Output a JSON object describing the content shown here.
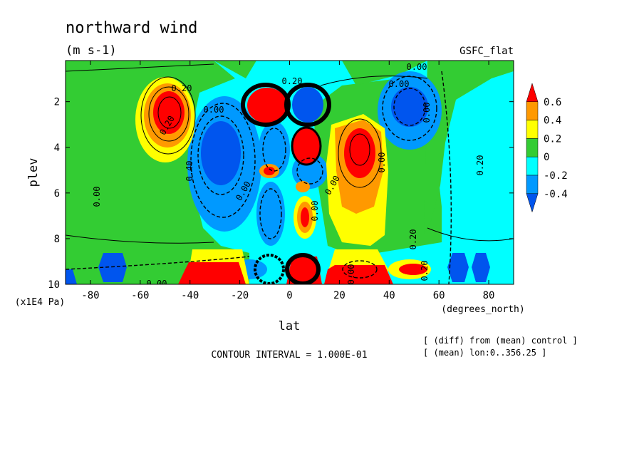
{
  "chart_data": {
    "type": "contour",
    "title": "northward wind",
    "units": "(m s-1)",
    "source_label": "GSFC_flat",
    "xlabel": "lat",
    "xunits": "(degrees_north)",
    "ylabel": "plev",
    "yunits": "(x1E4 Pa)",
    "xlim": [
      -90,
      90
    ],
    "ylim": [
      10,
      0.2
    ],
    "xticks": [
      -80,
      -60,
      -40,
      -20,
      0,
      20,
      40,
      60,
      80
    ],
    "yticks": [
      2,
      4,
      6,
      8,
      10
    ],
    "contour_interval_text": "CONTOUR INTERVAL = 1.000E-01",
    "footnotes": [
      "[ (diff) from (mean) control ]",
      "[ (mean) lon:0..356.25 ]"
    ],
    "colorbar": {
      "labels": [
        "0.6",
        "0.4",
        "0.2",
        "0",
        "-0.2",
        "-0.4"
      ],
      "colors": [
        "#ff0000",
        "#ff9900",
        "#ffff00",
        "#33cc33",
        "#00ffff",
        "#0099ff",
        "#0055ee"
      ]
    },
    "contour_labels": [
      "0.20",
      "0.20",
      "0.00",
      "0.00",
      "0.00",
      "0.00",
      "0.00",
      "0.20",
      "0.20",
      "0.40",
      "0.00",
      "0.00",
      "0.00",
      "0.00",
      "0.00",
      "0.20",
      "0.00",
      "0.20"
    ],
    "features": [
      {
        "lat": -47,
        "plev": 2.5,
        "value": 0.6
      },
      {
        "lat": -30,
        "plev": 3.8,
        "value": -0.4
      },
      {
        "lat": -8,
        "plev": 2.0,
        "value": 0.6
      },
      {
        "lat": 8,
        "plev": 2.0,
        "value": -0.6
      },
      {
        "lat": 5,
        "plev": 4.0,
        "value": 0.6
      },
      {
        "lat": 27,
        "plev": 4.0,
        "value": 0.6
      },
      {
        "lat": 48,
        "plev": 2.5,
        "value": -0.4
      },
      {
        "lat": 5,
        "plev": 6.8,
        "value": 0.6
      },
      {
        "lat": -5,
        "plev": 5.3,
        "value": 0.6
      },
      {
        "lat": -5,
        "plev": 6.5,
        "value": -0.6
      },
      {
        "lat": -30,
        "plev": 9.6,
        "value": 0.6
      },
      {
        "lat": 30,
        "plev": 9.6,
        "value": 0.6
      },
      {
        "lat": 50,
        "plev": 9.3,
        "value": 0.6
      },
      {
        "lat": -70,
        "plev": 9.5,
        "value": -0.4
      },
      {
        "lat": 65,
        "plev": 9.5,
        "value": -0.4
      },
      {
        "lat": 0,
        "plev": 9.3,
        "value": 0.6
      }
    ]
  }
}
